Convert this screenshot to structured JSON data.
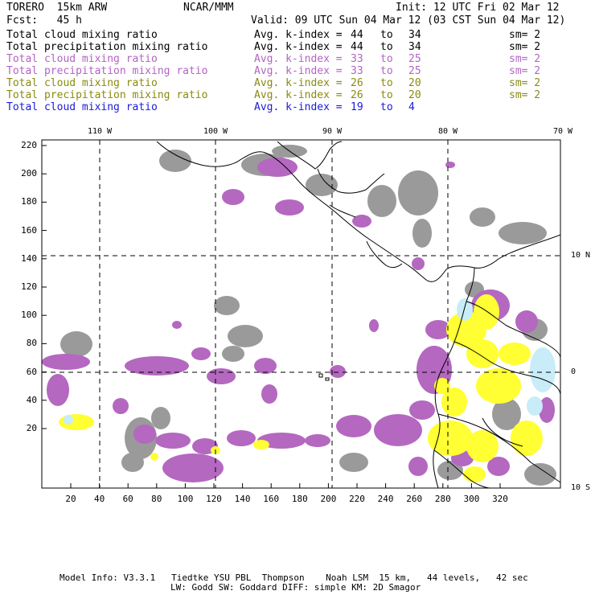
{
  "header": {
    "model": "TORERO  15km ARW",
    "org": "NCAR/MMM",
    "init": "Init: 12 UTC Fri 02 Mar 12",
    "fcst": "Fcst:   45 h",
    "valid": "Valid: 09 UTC Sun 04 Mar 12 (03 CST Sun 04 Mar 12)"
  },
  "legend": [
    {
      "field": "Total cloud mixing ratio",
      "kindex_label": "Avg. k-index =",
      "from": "44",
      "to_word": "to",
      "to": "34",
      "sm": "sm= 2",
      "color": "#000000"
    },
    {
      "field": "Total precipitation mixing ratio",
      "kindex_label": "Avg. k-index =",
      "from": "44",
      "to_word": "to",
      "to": "34",
      "sm": "sm= 2",
      "color": "#000000"
    },
    {
      "field": "Total cloud mixing ratio",
      "kindex_label": "Avg. k-index =",
      "from": "33",
      "to_word": "to",
      "to": "25",
      "sm": "sm= 2",
      "color": "#b463c4"
    },
    {
      "field": "Total precipitation mixing ratio",
      "kindex_label": "Avg. k-index =",
      "from": "33",
      "to_word": "to",
      "to": "25",
      "sm": "sm= 2",
      "color": "#b463c4"
    },
    {
      "field": "Total cloud mixing ratio",
      "kindex_label": "Avg. k-index =",
      "from": "26",
      "to_word": "to",
      "to": "20",
      "sm": "sm= 2",
      "color": "#8a8a10"
    },
    {
      "field": "Total precipitation mixing ratio",
      "kindex_label": "Avg. k-index =",
      "from": "26",
      "to_word": "to",
      "to": "20",
      "sm": "sm= 2",
      "color": "#8a8a10"
    },
    {
      "field": "Total cloud mixing ratio",
      "kindex_label": "Avg. k-index =",
      "from": "19",
      "to_word": "to",
      "to": "4",
      "sm": "",
      "color": "#1a1adc"
    }
  ],
  "map": {
    "lon_labels": [
      "110 W",
      "100 W",
      "90 W",
      "80 W",
      "70 W"
    ],
    "lat_labels": [
      "10 N",
      "0",
      "10 S"
    ],
    "y_ticks": [
      "220",
      "200",
      "180",
      "160",
      "140",
      "120",
      "100",
      "80",
      "60",
      "40",
      "20"
    ],
    "x_ticks": [
      "20",
      "40",
      "60",
      "80",
      "100",
      "120",
      "140",
      "160",
      "180",
      "200",
      "220",
      "240",
      "260",
      "280",
      "300",
      "320"
    ],
    "colors": {
      "gray": "#9a9a9a",
      "purple": "#b468c0",
      "yellow": "#ffff33",
      "lightblue": "#c8ecf8",
      "coast": "#000000"
    }
  },
  "footer": {
    "line1": "Model Info: V3.3.1   Tiedtke YSU PBL  Thompson    Noah LSM  15 km,   44 levels,   42 sec",
    "line2": "LW: Godd SW: Goddard DIFF: simple KM: 2D Smagor"
  }
}
